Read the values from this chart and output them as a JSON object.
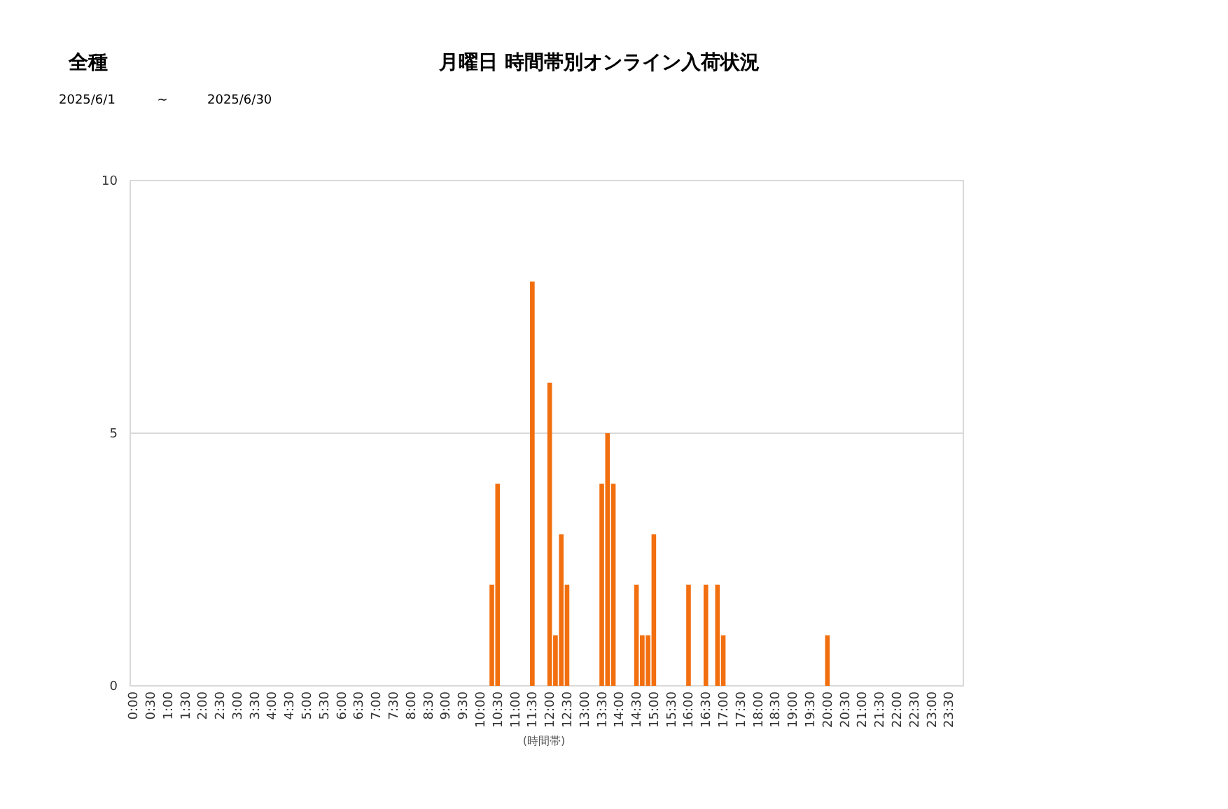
{
  "chart_data": {
    "type": "bar",
    "title": "月曜日 時間帯別オンライン入荷状況",
    "xlabel": "(時間帯)",
    "annotations": [
      "全種",
      "2025/6/1",
      "~",
      "2025/6/30"
    ],
    "categories": [
      "0:00",
      null,
      null,
      "0:30",
      null,
      null,
      "1:00",
      null,
      null,
      "1:30",
      null,
      null,
      "2:00",
      null,
      null,
      "2:30",
      null,
      null,
      "3:00",
      null,
      null,
      "3:30",
      null,
      null,
      "4:00",
      null,
      null,
      "4:30",
      null,
      null,
      "5:00",
      null,
      null,
      "5:30",
      null,
      null,
      "6:00",
      null,
      null,
      "6:30",
      null,
      null,
      "7:00",
      null,
      null,
      "7:30",
      null,
      null,
      "8:00",
      null,
      null,
      "8:30",
      null,
      null,
      "9:00",
      null,
      null,
      "9:30",
      null,
      null,
      "10:00",
      null,
      null,
      "10:30",
      null,
      null,
      "11:00",
      null,
      null,
      "11:30",
      null,
      null,
      "12:00",
      null,
      null,
      "12:30",
      null,
      null,
      "13:00",
      null,
      null,
      "13:30",
      null,
      null,
      "14:00",
      null,
      null,
      "14:30",
      null,
      null,
      "15:00",
      null,
      null,
      "15:30",
      null,
      null,
      "16:00",
      null,
      null,
      "16:30",
      null,
      null,
      "17:00",
      null,
      null,
      "17:30",
      null,
      null,
      "18:00",
      null,
      null,
      "18:30",
      null,
      null,
      "19:00",
      null,
      null,
      "19:30",
      null,
      null,
      "20:00",
      null,
      null,
      "20:30",
      null,
      null,
      "21:00",
      null,
      null,
      "21:30",
      null,
      null,
      "22:00",
      null,
      null,
      "22:30",
      null,
      null,
      "23:00",
      null,
      null,
      "23:30",
      null,
      null
    ],
    "values": [
      0,
      0,
      0,
      0,
      0,
      0,
      0,
      0,
      0,
      0,
      0,
      0,
      0,
      0,
      0,
      0,
      0,
      0,
      0,
      0,
      0,
      0,
      0,
      0,
      0,
      0,
      0,
      0,
      0,
      0,
      0,
      0,
      0,
      0,
      0,
      0,
      0,
      0,
      0,
      0,
      0,
      0,
      0,
      0,
      0,
      0,
      0,
      0,
      0,
      0,
      0,
      0,
      0,
      0,
      0,
      0,
      0,
      0,
      0,
      0,
      0,
      0,
      2,
      4,
      0,
      0,
      0,
      0,
      0,
      8,
      0,
      0,
      6,
      1,
      3,
      2,
      0,
      0,
      0,
      0,
      0,
      4,
      5,
      4,
      0,
      0,
      0,
      2,
      1,
      1,
      3,
      0,
      0,
      0,
      0,
      0,
      2,
      0,
      0,
      2,
      0,
      2,
      1,
      0,
      0,
      0,
      0,
      0,
      0,
      0,
      0,
      0,
      0,
      0,
      0,
      0,
      0,
      0,
      0,
      0,
      1,
      0,
      0,
      0,
      0,
      0,
      0,
      0,
      0,
      0,
      0,
      0,
      0,
      0,
      0,
      0,
      0,
      0,
      0,
      0,
      0,
      0,
      0,
      0
    ],
    "color": "#f26f10",
    "ylim": [
      0,
      10
    ],
    "yticks": [
      0,
      5,
      10
    ],
    "grid": "y"
  }
}
